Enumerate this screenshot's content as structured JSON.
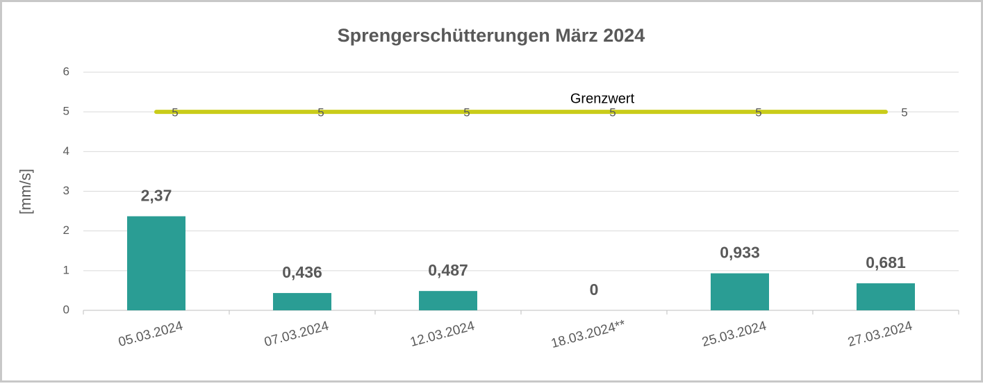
{
  "chart_data": {
    "type": "bar",
    "title": "Sprengerschütterungen März 2024",
    "y_label": "[mm/s]",
    "categories": [
      "05.03.2024",
      "07.03.2024",
      "12.03.2024",
      "18.03.2024**",
      "25.03.2024",
      "27.03.2024"
    ],
    "series": [
      {
        "type": "bar",
        "color": "#2a9d94",
        "values": [
          2.37,
          0.436,
          0.487,
          0,
          0.933,
          0.681
        ],
        "value_labels": [
          "2,37",
          "0,436",
          "0,487",
          "0",
          "0,933",
          "0,681"
        ]
      },
      {
        "type": "line",
        "name": "Grenzwert",
        "color": "#c9cc1a",
        "values": [
          5,
          5,
          5,
          5,
          5,
          5
        ]
      }
    ],
    "ylim": [
      0,
      6
    ],
    "yticks": [
      0,
      1,
      2,
      3,
      4,
      5,
      6
    ],
    "grid": true
  }
}
